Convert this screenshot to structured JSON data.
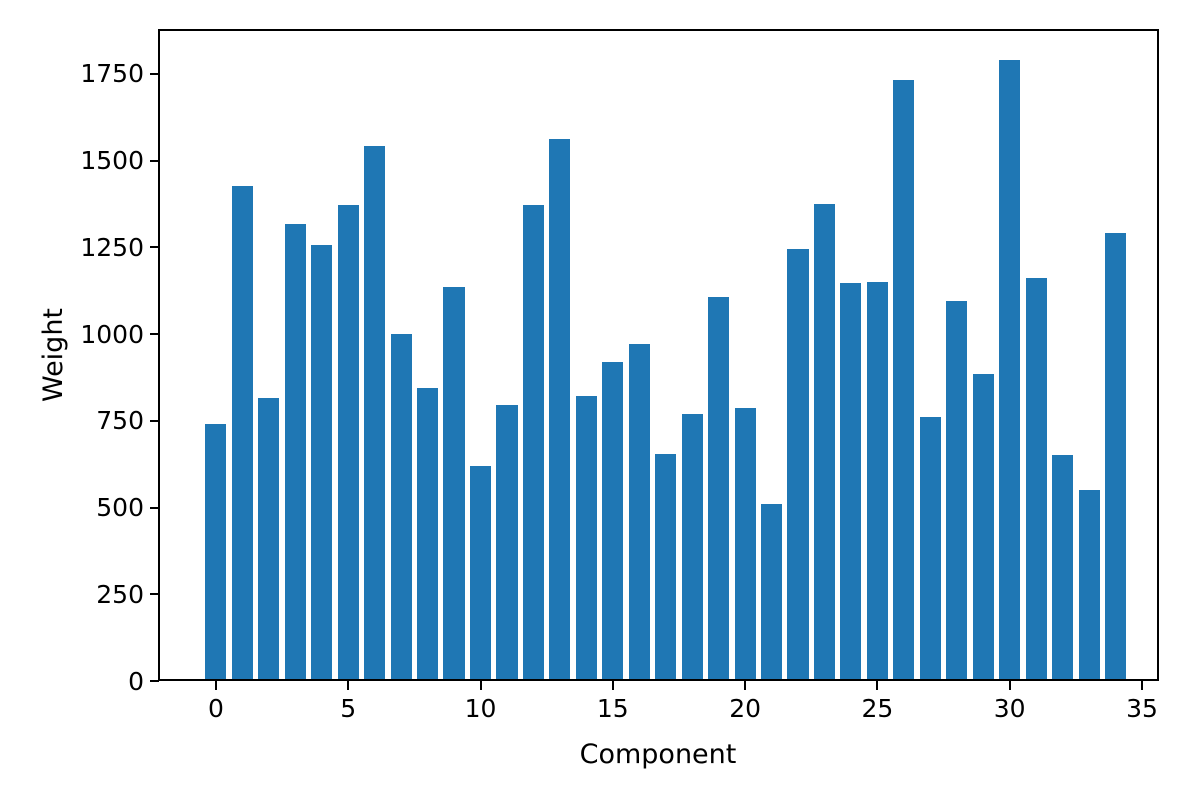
{
  "figure": {
    "background_color": "#ffffff",
    "bar_color": "#1f77b4",
    "axis_color": "#000000"
  },
  "chart_data": {
    "type": "bar",
    "title": "",
    "xlabel": "Component",
    "ylabel": "Weight",
    "categories": [
      0,
      1,
      2,
      3,
      4,
      5,
      6,
      7,
      8,
      9,
      10,
      11,
      12,
      13,
      14,
      15,
      16,
      17,
      18,
      19,
      20,
      21,
      22,
      23,
      24,
      25,
      26,
      27,
      28,
      29,
      30,
      31,
      32,
      33,
      34
    ],
    "values": [
      735,
      1420,
      810,
      1310,
      1250,
      1365,
      1535,
      995,
      840,
      1130,
      615,
      790,
      1365,
      1555,
      815,
      915,
      965,
      650,
      765,
      1100,
      780,
      505,
      1240,
      1370,
      1140,
      1145,
      1725,
      755,
      1090,
      880,
      1785,
      1155,
      645,
      545,
      1285
    ],
    "xticks": [
      0,
      5,
      10,
      15,
      20,
      25,
      30,
      35
    ],
    "yticks": [
      0,
      250,
      500,
      750,
      1000,
      1250,
      1500,
      1750
    ],
    "ylim": [
      0,
      1876
    ],
    "xlim": [
      -2.15,
      36.15
    ],
    "grid": false,
    "legend_position": "none",
    "bar_width_fraction": 0.8
  }
}
